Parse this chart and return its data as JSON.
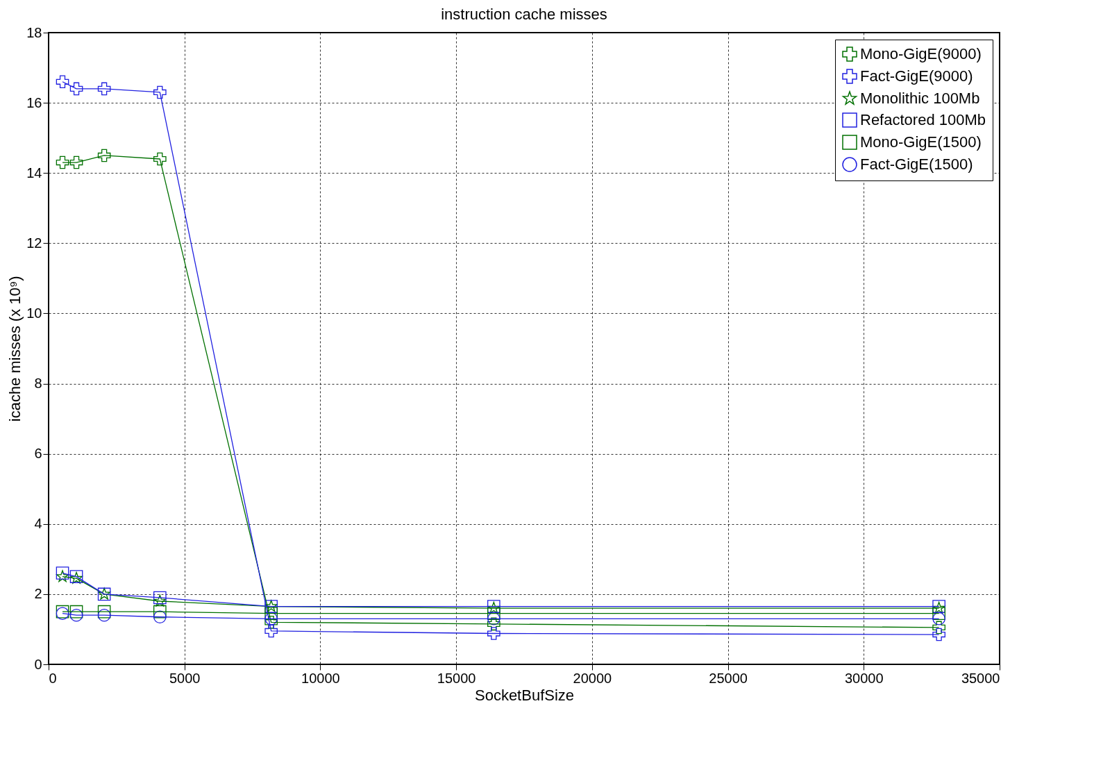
{
  "chart_data": {
    "type": "line",
    "title": "instruction cache misses",
    "xlabel": "SocketBufSize",
    "ylabel": "icache misses (x 10⁹)",
    "x": [
      512,
      1024,
      2048,
      4096,
      8192,
      16384,
      32768
    ],
    "xlim": [
      0,
      35000
    ],
    "xticks": [
      0,
      5000,
      10000,
      15000,
      20000,
      25000,
      30000,
      35000
    ],
    "ylim": [
      0,
      18
    ],
    "yticks": [
      0,
      2,
      4,
      6,
      8,
      10,
      12,
      14,
      16,
      18
    ],
    "grid": true,
    "legend": "top right",
    "line_style": "solid",
    "series": [
      {
        "name": "Mono-GigE(9000)",
        "color": "#007000",
        "marker": "cross",
        "values": [
          14.3,
          14.3,
          14.5,
          14.4,
          1.2,
          1.15,
          1.05
        ]
      },
      {
        "name": "Fact-GigE(9000)",
        "color": "#2020e0",
        "marker": "cross",
        "values": [
          16.6,
          16.4,
          16.4,
          16.3,
          0.95,
          0.88,
          0.85
        ]
      },
      {
        "name": "Monolithic 100Mb",
        "color": "#007000",
        "marker": "star",
        "values": [
          2.5,
          2.45,
          2.0,
          1.8,
          1.65,
          1.6,
          1.6
        ]
      },
      {
        "name": "Refactored 100Mb",
        "color": "#2020e0",
        "marker": "square",
        "values": [
          2.6,
          2.5,
          2.0,
          1.9,
          1.65,
          1.65,
          1.65
        ]
      },
      {
        "name": "Mono-GigE(1500)",
        "color": "#007000",
        "marker": "square",
        "values": [
          1.5,
          1.5,
          1.5,
          1.5,
          1.45,
          1.45,
          1.45
        ]
      },
      {
        "name": "Fact-GigE(1500)",
        "color": "#2020e0",
        "marker": "circle",
        "values": [
          1.45,
          1.4,
          1.4,
          1.35,
          1.3,
          1.3,
          1.3
        ]
      }
    ]
  }
}
